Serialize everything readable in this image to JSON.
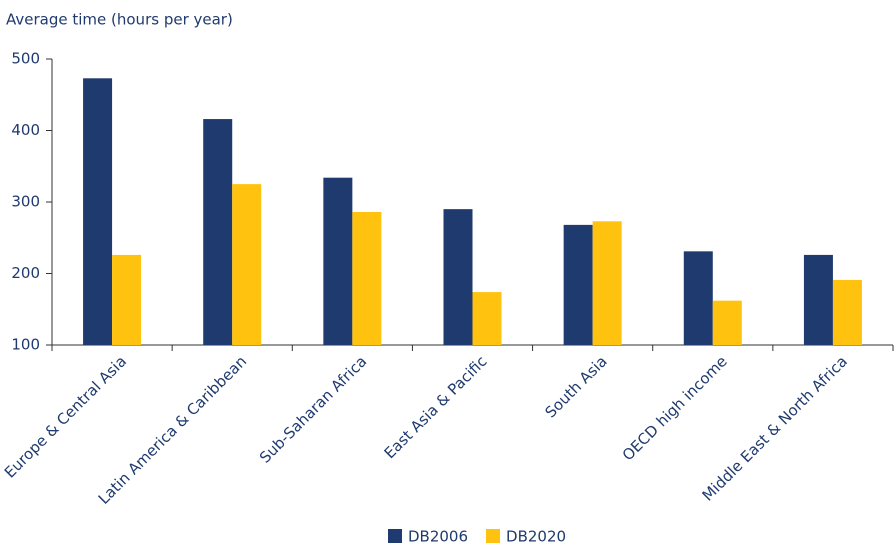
{
  "chart_data": {
    "type": "bar",
    "y_axis_label": "Average time (hours per year)",
    "categories": [
      "Europe & Central Asia",
      "Latin America & Caribbean",
      "Sub-Saharan Africa",
      "East Asia & Pacific",
      "South Asia",
      "OECD high income",
      "Middle East & North Africa"
    ],
    "series": [
      {
        "name": "DB2006",
        "color": "#1f3a6e",
        "values": [
          473,
          416,
          334,
          290,
          268,
          231,
          226
        ]
      },
      {
        "name": "DB2020",
        "color": "#ffc20e",
        "values": [
          226,
          325,
          286,
          174,
          273,
          162,
          191
        ]
      }
    ],
    "ylim": [
      100,
      500
    ],
    "yticks": [
      100,
      200,
      300,
      400,
      500
    ],
    "legend": "bottom"
  }
}
